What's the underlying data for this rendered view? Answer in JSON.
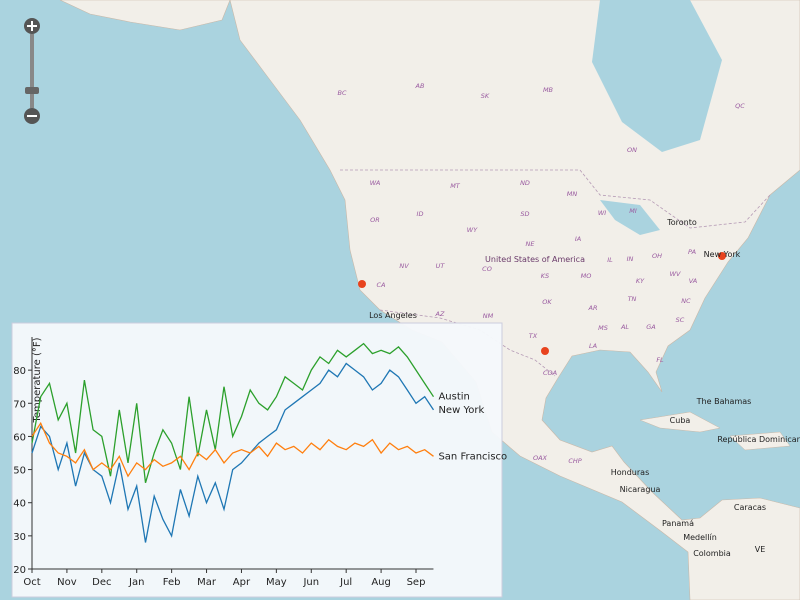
{
  "map": {
    "labels": [
      "BC",
      "AB",
      "SK",
      "MB",
      "QC",
      "ON",
      "WA",
      "MT",
      "ND",
      "MN",
      "ID",
      "OR",
      "WY",
      "SD",
      "WI",
      "MI",
      "NE",
      "IA",
      "NV",
      "UT",
      "CO",
      "KS",
      "MO",
      "IL",
      "IN",
      "OH",
      "PA",
      "CA",
      "AZ",
      "NM",
      "OK",
      "AR",
      "TN",
      "KY",
      "WV",
      "VA",
      "NC",
      "SC",
      "GA",
      "AL",
      "MS",
      "LA",
      "TX",
      "FL",
      "United States of America",
      "Toronto",
      "New York",
      "Los Angeles",
      "The Bahamas",
      "Cuba",
      "República Dominicana",
      "Honduras",
      "Nicaragua",
      "Panamá",
      "Caracas",
      "Medellín",
      "Colombia",
      "VE",
      "COA",
      "OAX",
      "CHP"
    ]
  },
  "chart_data": {
    "type": "line",
    "y_label": "Temperature (°F)",
    "categories": [
      "Oct",
      null,
      null,
      null,
      "Nov",
      null,
      null,
      null,
      "Dec",
      null,
      null,
      null,
      "Jan",
      null,
      null,
      null,
      "Feb",
      null,
      null,
      null,
      "Mar",
      null,
      null,
      null,
      "Apr",
      null,
      null,
      null,
      "May",
      null,
      null,
      null,
      "Jun",
      null,
      null,
      null,
      "Jul",
      null,
      null,
      null,
      "Aug",
      null,
      null,
      null,
      "Sep",
      null,
      null
    ],
    "series": [
      {
        "name": "Austin",
        "color": "#2ca02c",
        "values": [
          58,
          72,
          76,
          65,
          70,
          55,
          77,
          62,
          60,
          48,
          68,
          52,
          70,
          46,
          55,
          62,
          58,
          50,
          72,
          54,
          68,
          56,
          75,
          60,
          66,
          74,
          70,
          68,
          72,
          78,
          76,
          74,
          80,
          84,
          82,
          86,
          84,
          86,
          88,
          85,
          86,
          85,
          87,
          84,
          80,
          76,
          72
        ]
      },
      {
        "name": "New York",
        "color": "#1f77b4",
        "values": [
          55,
          63,
          60,
          50,
          58,
          45,
          55,
          50,
          48,
          40,
          52,
          38,
          45,
          28,
          42,
          35,
          30,
          44,
          36,
          48,
          40,
          46,
          38,
          50,
          52,
          55,
          58,
          60,
          62,
          68,
          70,
          72,
          74,
          76,
          80,
          78,
          82,
          80,
          78,
          74,
          76,
          80,
          78,
          74,
          70,
          72,
          68
        ]
      },
      {
        "name": "San Francisco",
        "color": "#ff7f0e",
        "values": [
          60,
          64,
          58,
          55,
          54,
          52,
          56,
          50,
          52,
          50,
          54,
          48,
          52,
          50,
          53,
          51,
          52,
          54,
          50,
          55,
          53,
          56,
          52,
          55,
          56,
          55,
          57,
          54,
          58,
          56,
          57,
          55,
          58,
          56,
          59,
          57,
          56,
          58,
          57,
          59,
          55,
          58,
          56,
          57,
          55,
          56,
          54
        ]
      }
    ],
    "ylim": [
      20,
      90
    ],
    "yticks": [
      20,
      30,
      40,
      50,
      60,
      70,
      80
    ]
  }
}
